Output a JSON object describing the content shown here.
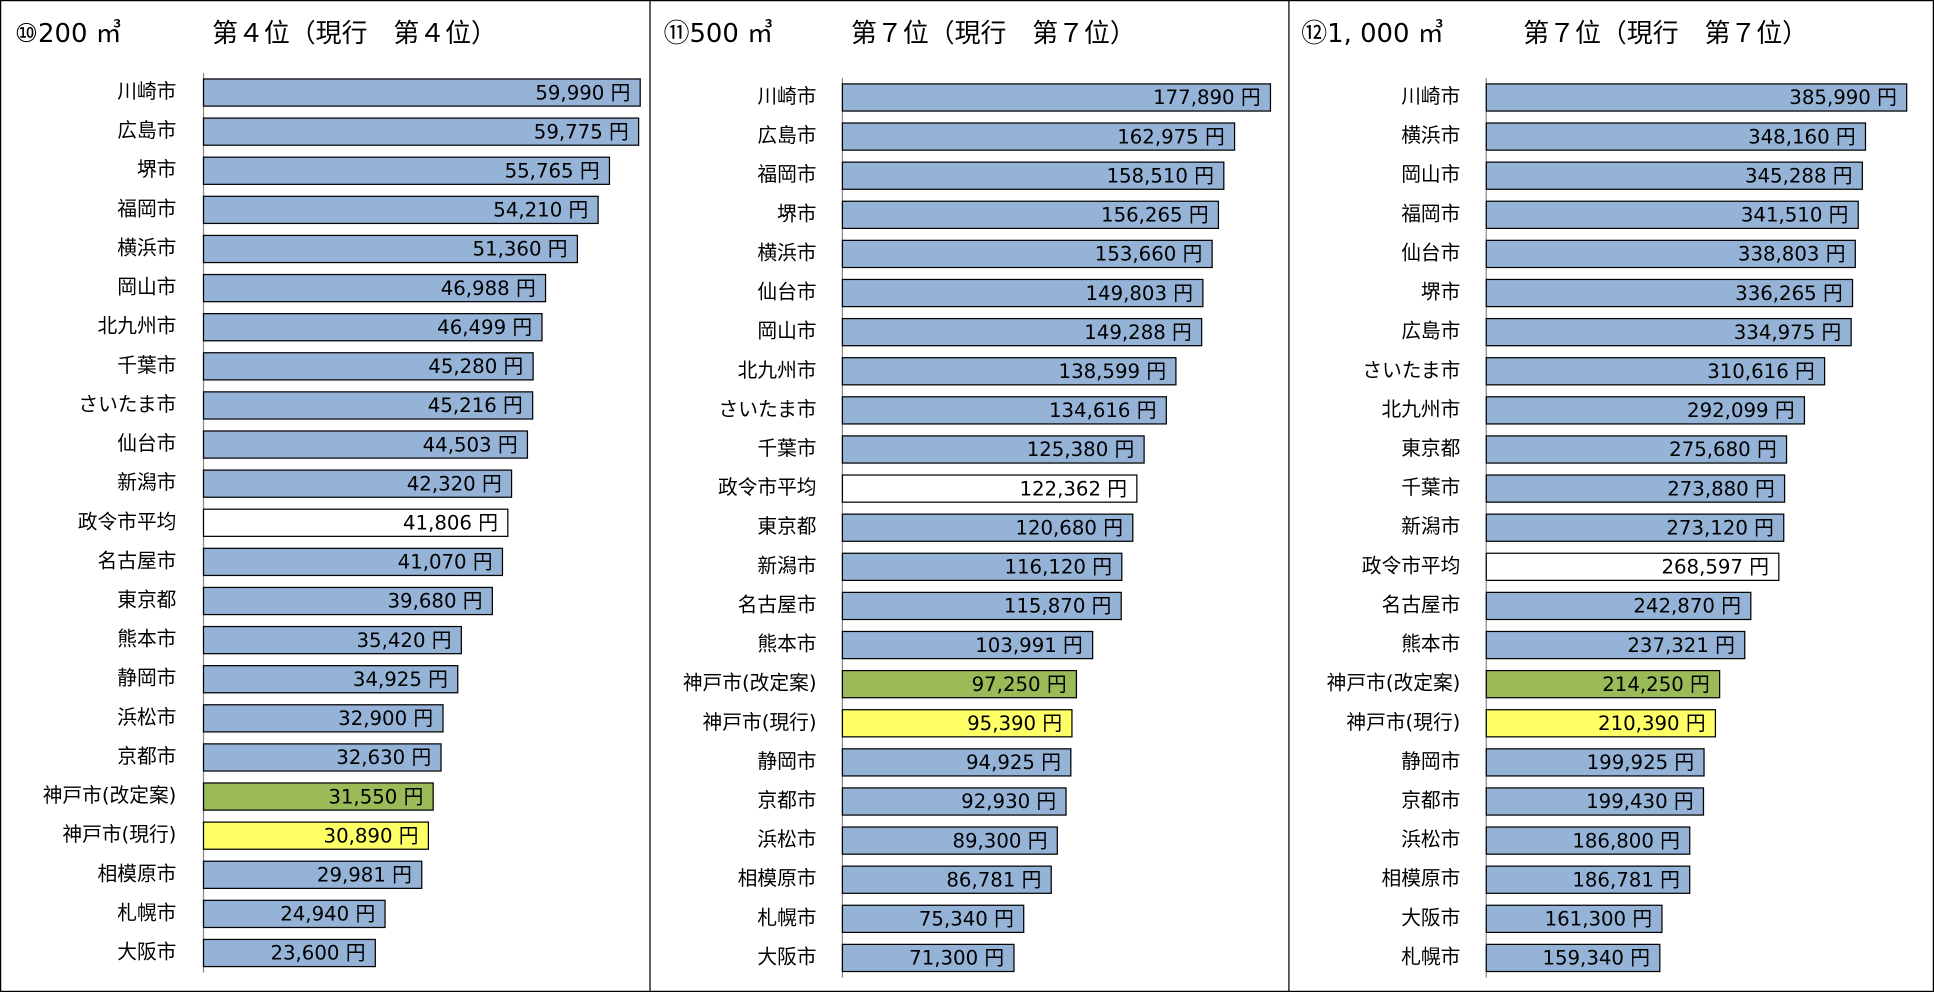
{
  "chart_data": [
    {
      "type": "bar",
      "title": "⑩200 ㎥",
      "subtitle": "第４位（現行　第４位）",
      "categories": [
        "川崎市",
        "広島市",
        "堺市",
        "福岡市",
        "横浜市",
        "岡山市",
        "北九州市",
        "千葉市",
        "さいたま市",
        "仙台市",
        "新潟市",
        "政令市平均",
        "名古屋市",
        "東京都",
        "熊本市",
        "静岡市",
        "浜松市",
        "京都市",
        "神戸市(改定案)",
        "神戸市(現行)",
        "相模原市",
        "札幌市",
        "大阪市"
      ],
      "values": [
        59990,
        59775,
        55765,
        54210,
        51360,
        46988,
        46499,
        45280,
        45216,
        44503,
        42320,
        41806,
        41070,
        39680,
        35420,
        34925,
        32900,
        32630,
        31550,
        30890,
        29981,
        24940,
        23600
      ],
      "value_labels": [
        "59,990 円",
        "59,775 円",
        "55,765 円",
        "54,210 円",
        "51,360 円",
        "46,988 円",
        "46,499 円",
        "45,280 円",
        "45,216 円",
        "44,503 円",
        "42,320 円",
        "41,806 円",
        "41,070 円",
        "39,680 円",
        "35,420 円",
        "34,925 円",
        "32,900 円",
        "32,630 円",
        "31,550 円",
        "30,890 円",
        "29,981 円",
        "24,940 円",
        "23,600 円"
      ],
      "colors": [
        "#95b3d7",
        "#95b3d7",
        "#95b3d7",
        "#95b3d7",
        "#95b3d7",
        "#95b3d7",
        "#95b3d7",
        "#95b3d7",
        "#95b3d7",
        "#95b3d7",
        "#95b3d7",
        "#ffffff",
        "#95b3d7",
        "#95b3d7",
        "#95b3d7",
        "#95b3d7",
        "#95b3d7",
        "#95b3d7",
        "#9bbb59",
        "#ffff66",
        "#95b3d7",
        "#95b3d7",
        "#95b3d7"
      ],
      "xlim": [
        0,
        61000
      ]
    },
    {
      "type": "bar",
      "title": "⑪500 ㎥",
      "subtitle": "第７位（現行　第７位）",
      "categories": [
        "川崎市",
        "広島市",
        "福岡市",
        "堺市",
        "横浜市",
        "仙台市",
        "岡山市",
        "北九州市",
        "さいたま市",
        "千葉市",
        "政令市平均",
        "東京都",
        "新潟市",
        "名古屋市",
        "熊本市",
        "神戸市(改定案)",
        "神戸市(現行)",
        "静岡市",
        "京都市",
        "浜松市",
        "相模原市",
        "札幌市",
        "大阪市"
      ],
      "values": [
        177890,
        162975,
        158510,
        156265,
        153660,
        149803,
        149288,
        138599,
        134616,
        125380,
        122362,
        120680,
        116120,
        115870,
        103991,
        97250,
        95390,
        94925,
        92930,
        89300,
        86781,
        75340,
        71300
      ],
      "value_labels": [
        "177,890 円",
        "162,975 円",
        "158,510 円",
        "156,265 円",
        "153,660 円",
        "149,803 円",
        "149,288 円",
        "138,599 円",
        "134,616 円",
        "125,380 円",
        "122,362 円",
        "120,680 円",
        "116,120 円",
        "115,870 円",
        "103,991 円",
        "97,250 円",
        "95,390 円",
        "94,925 円",
        "92,930 円",
        "89,300 円",
        "86,781 円",
        "75,340 円",
        "71,300 円"
      ],
      "colors": [
        "#95b3d7",
        "#95b3d7",
        "#95b3d7",
        "#95b3d7",
        "#95b3d7",
        "#95b3d7",
        "#95b3d7",
        "#95b3d7",
        "#95b3d7",
        "#95b3d7",
        "#ffffff",
        "#95b3d7",
        "#95b3d7",
        "#95b3d7",
        "#95b3d7",
        "#9bbb59",
        "#ffff66",
        "#95b3d7",
        "#95b3d7",
        "#95b3d7",
        "#95b3d7",
        "#95b3d7",
        "#95b3d7"
      ],
      "xlim": [
        0,
        183000
      ]
    },
    {
      "type": "bar",
      "title": "⑫1, 000 ㎥",
      "subtitle": "第７位（現行　第７位）",
      "categories": [
        "川崎市",
        "横浜市",
        "岡山市",
        "福岡市",
        "仙台市",
        "堺市",
        "広島市",
        "さいたま市",
        "北九州市",
        "東京都",
        "千葉市",
        "新潟市",
        "政令市平均",
        "名古屋市",
        "熊本市",
        "神戸市(改定案)",
        "神戸市(現行)",
        "静岡市",
        "京都市",
        "浜松市",
        "相模原市",
        "大阪市",
        "札幌市"
      ],
      "values": [
        385990,
        348160,
        345288,
        341510,
        338803,
        336265,
        334975,
        310616,
        292099,
        275680,
        273880,
        273120,
        268597,
        242870,
        237321,
        214250,
        210390,
        199925,
        199430,
        186800,
        186781,
        161300,
        159340
      ],
      "value_labels": [
        "385,990 円",
        "348,160 円",
        "345,288 円",
        "341,510 円",
        "338,803 円",
        "336,265 円",
        "334,975 円",
        "310,616 円",
        "292,099 円",
        "275,680 円",
        "273,880 円",
        "273,120 円",
        "268,597 円",
        "242,870 円",
        "237,321 円",
        "214,250 円",
        "210,390 円",
        "199,925 円",
        "199,430 円",
        "186,800 円",
        "186,781 円",
        "161,300 円",
        "159,340 円"
      ],
      "colors": [
        "#95b3d7",
        "#95b3d7",
        "#95b3d7",
        "#95b3d7",
        "#95b3d7",
        "#95b3d7",
        "#95b3d7",
        "#95b3d7",
        "#95b3d7",
        "#95b3d7",
        "#95b3d7",
        "#95b3d7",
        "#ffffff",
        "#95b3d7",
        "#95b3d7",
        "#9bbb59",
        "#ffff66",
        "#95b3d7",
        "#95b3d7",
        "#95b3d7",
        "#95b3d7",
        "#95b3d7",
        "#95b3d7"
      ],
      "xlim": [
        0,
        402000
      ]
    }
  ]
}
